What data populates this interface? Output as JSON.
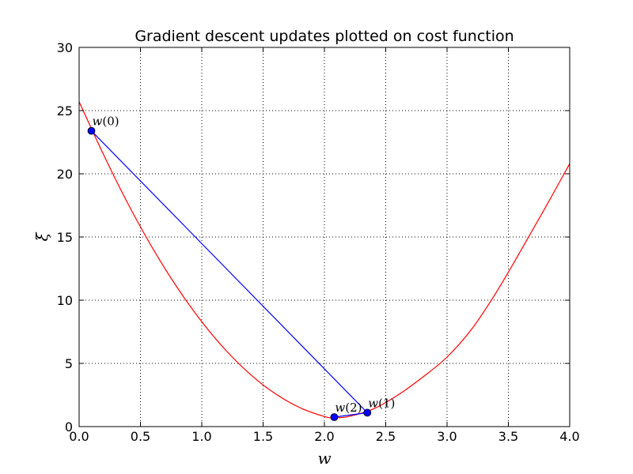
{
  "chart_data": {
    "type": "line",
    "title": "Gradient descent updates plotted on cost function",
    "xlabel": "w",
    "ylabel": "ξ",
    "xlim": [
      0.0,
      4.0
    ],
    "ylim": [
      0,
      30
    ],
    "xticks": [
      "0.0",
      "0.5",
      "1.0",
      "1.5",
      "2.0",
      "2.5",
      "3.0",
      "3.5",
      "4.0"
    ],
    "yticks": [
      "0",
      "5",
      "10",
      "15",
      "20",
      "25",
      "30"
    ],
    "grid": true,
    "cost_function": {
      "color": "#ff0000",
      "x": [
        0.0,
        0.2,
        0.4,
        0.6,
        0.8,
        1.0,
        1.2,
        1.4,
        1.6,
        1.8,
        2.0,
        2.08,
        2.2,
        2.4,
        2.6,
        2.8,
        3.0,
        3.2,
        3.4,
        3.6,
        3.8,
        4.0
      ],
      "y": [
        25.7,
        21.5,
        17.6,
        14.1,
        11.0,
        8.3,
        6.0,
        4.1,
        2.6,
        1.5,
        0.8,
        0.7,
        0.8,
        1.4,
        2.5,
        3.9,
        5.5,
        7.7,
        10.6,
        13.9,
        17.3,
        20.8
      ]
    },
    "updates": {
      "color": "#0000ff",
      "points": [
        {
          "label_prefix": "w",
          "label_index": "(0)",
          "x": 0.1,
          "y": 23.4
        },
        {
          "label_prefix": "w",
          "label_index": "(1)",
          "x": 2.35,
          "y": 1.1
        },
        {
          "label_prefix": "w",
          "label_index": "(2)",
          "x": 2.08,
          "y": 0.75
        }
      ]
    }
  }
}
